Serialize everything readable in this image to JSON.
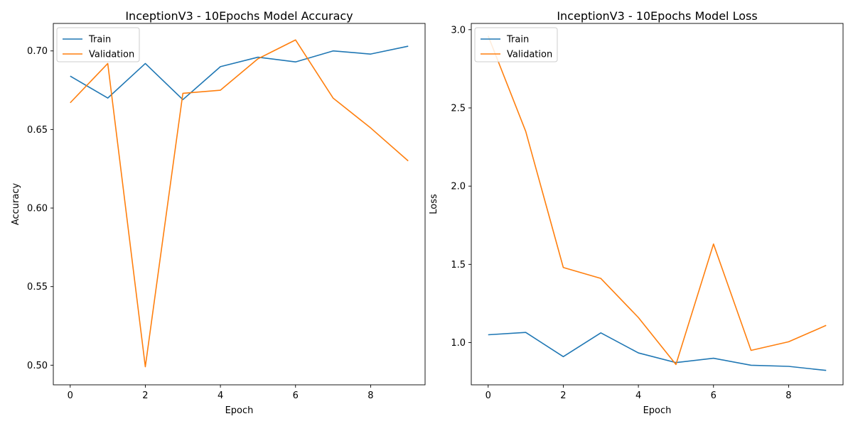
{
  "colors": {
    "train": "#1f77b4",
    "validation": "#ff7f0e"
  },
  "chart_data": [
    {
      "type": "line",
      "title": "InceptionV3 - 10Epochs Model Accuracy",
      "xlabel": "Epoch",
      "ylabel": "Accuracy",
      "x": [
        0,
        1,
        2,
        3,
        4,
        5,
        6,
        7,
        8,
        9
      ],
      "xlim": [
        -0.45,
        9.45
      ],
      "ylim": [
        0.4875,
        0.7175
      ],
      "xticks": [
        0,
        2,
        4,
        6,
        8
      ],
      "yticks": [
        "0.50",
        "0.55",
        "0.60",
        "0.65",
        "0.70"
      ],
      "legend_position": "upper left",
      "grid": false,
      "series": [
        {
          "name": "Train",
          "values": [
            0.684,
            0.67,
            0.692,
            0.669,
            0.69,
            0.696,
            0.693,
            0.7,
            0.698,
            0.703
          ]
        },
        {
          "name": "Validation",
          "values": [
            0.667,
            0.692,
            0.499,
            0.673,
            0.675,
            0.695,
            0.707,
            0.67,
            0.651,
            0.63
          ]
        }
      ]
    },
    {
      "type": "line",
      "title": "InceptionV3 - 10Epochs Model Loss",
      "xlabel": "Epoch",
      "ylabel": "Loss",
      "x": [
        0,
        1,
        2,
        3,
        4,
        5,
        6,
        7,
        8,
        9
      ],
      "xlim": [
        -0.45,
        9.45
      ],
      "ylim": [
        0.73,
        3.04
      ],
      "xticks": [
        0,
        2,
        4,
        6,
        8
      ],
      "yticks": [
        "1.0",
        "1.5",
        "2.0",
        "2.5",
        "3.0"
      ],
      "legend_position": "upper left",
      "grid": false,
      "series": [
        {
          "name": "Train",
          "values": [
            1.05,
            1.065,
            0.91,
            1.062,
            0.934,
            0.872,
            0.9,
            0.855,
            0.848,
            0.822
          ]
        },
        {
          "name": "Validation",
          "values": [
            2.96,
            2.35,
            1.48,
            1.41,
            1.16,
            0.86,
            1.63,
            0.95,
            1.005,
            1.11
          ]
        }
      ]
    }
  ]
}
